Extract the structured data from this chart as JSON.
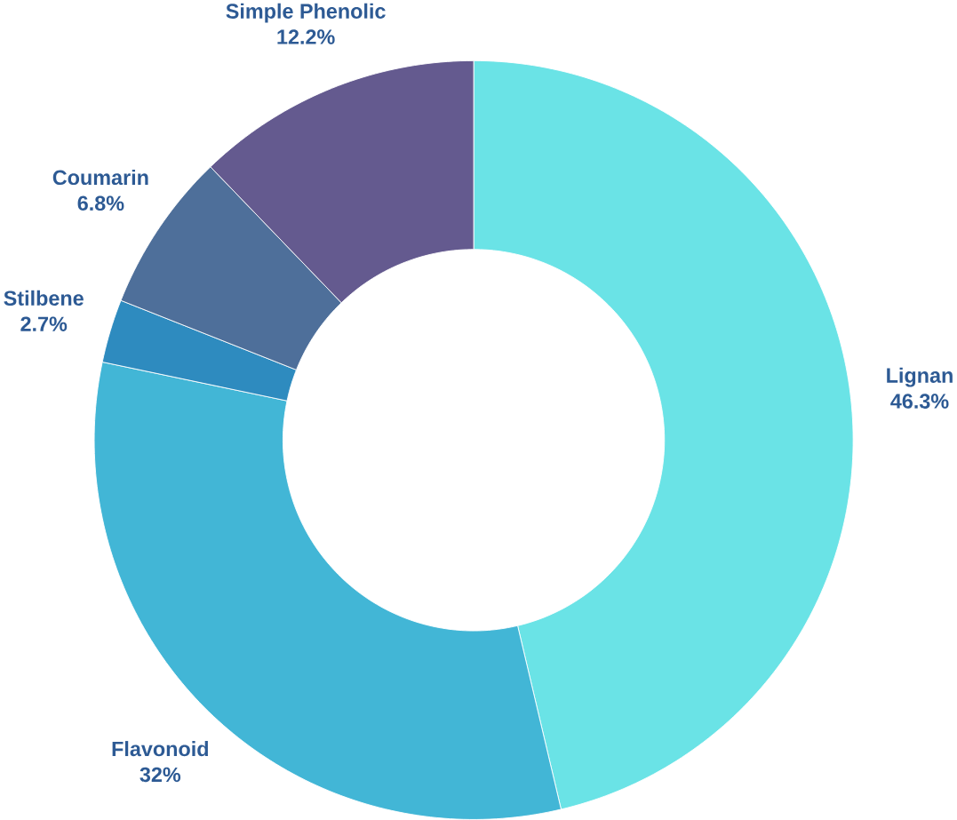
{
  "chart_data": {
    "type": "donut",
    "categories": [
      "Lignan",
      "Flavonoid",
      "Stilbene",
      "Coumarin",
      "Simple Phenolic"
    ],
    "values": [
      46.3,
      32,
      2.7,
      6.8,
      12.2
    ],
    "colors": [
      "#6ae3e6",
      "#42b6d6",
      "#2e8bbf",
      "#4e6f9a",
      "#645a8f"
    ],
    "value_labels": [
      "46.3%",
      "32%",
      "2.7%",
      "6.8%",
      "12.2%"
    ]
  }
}
